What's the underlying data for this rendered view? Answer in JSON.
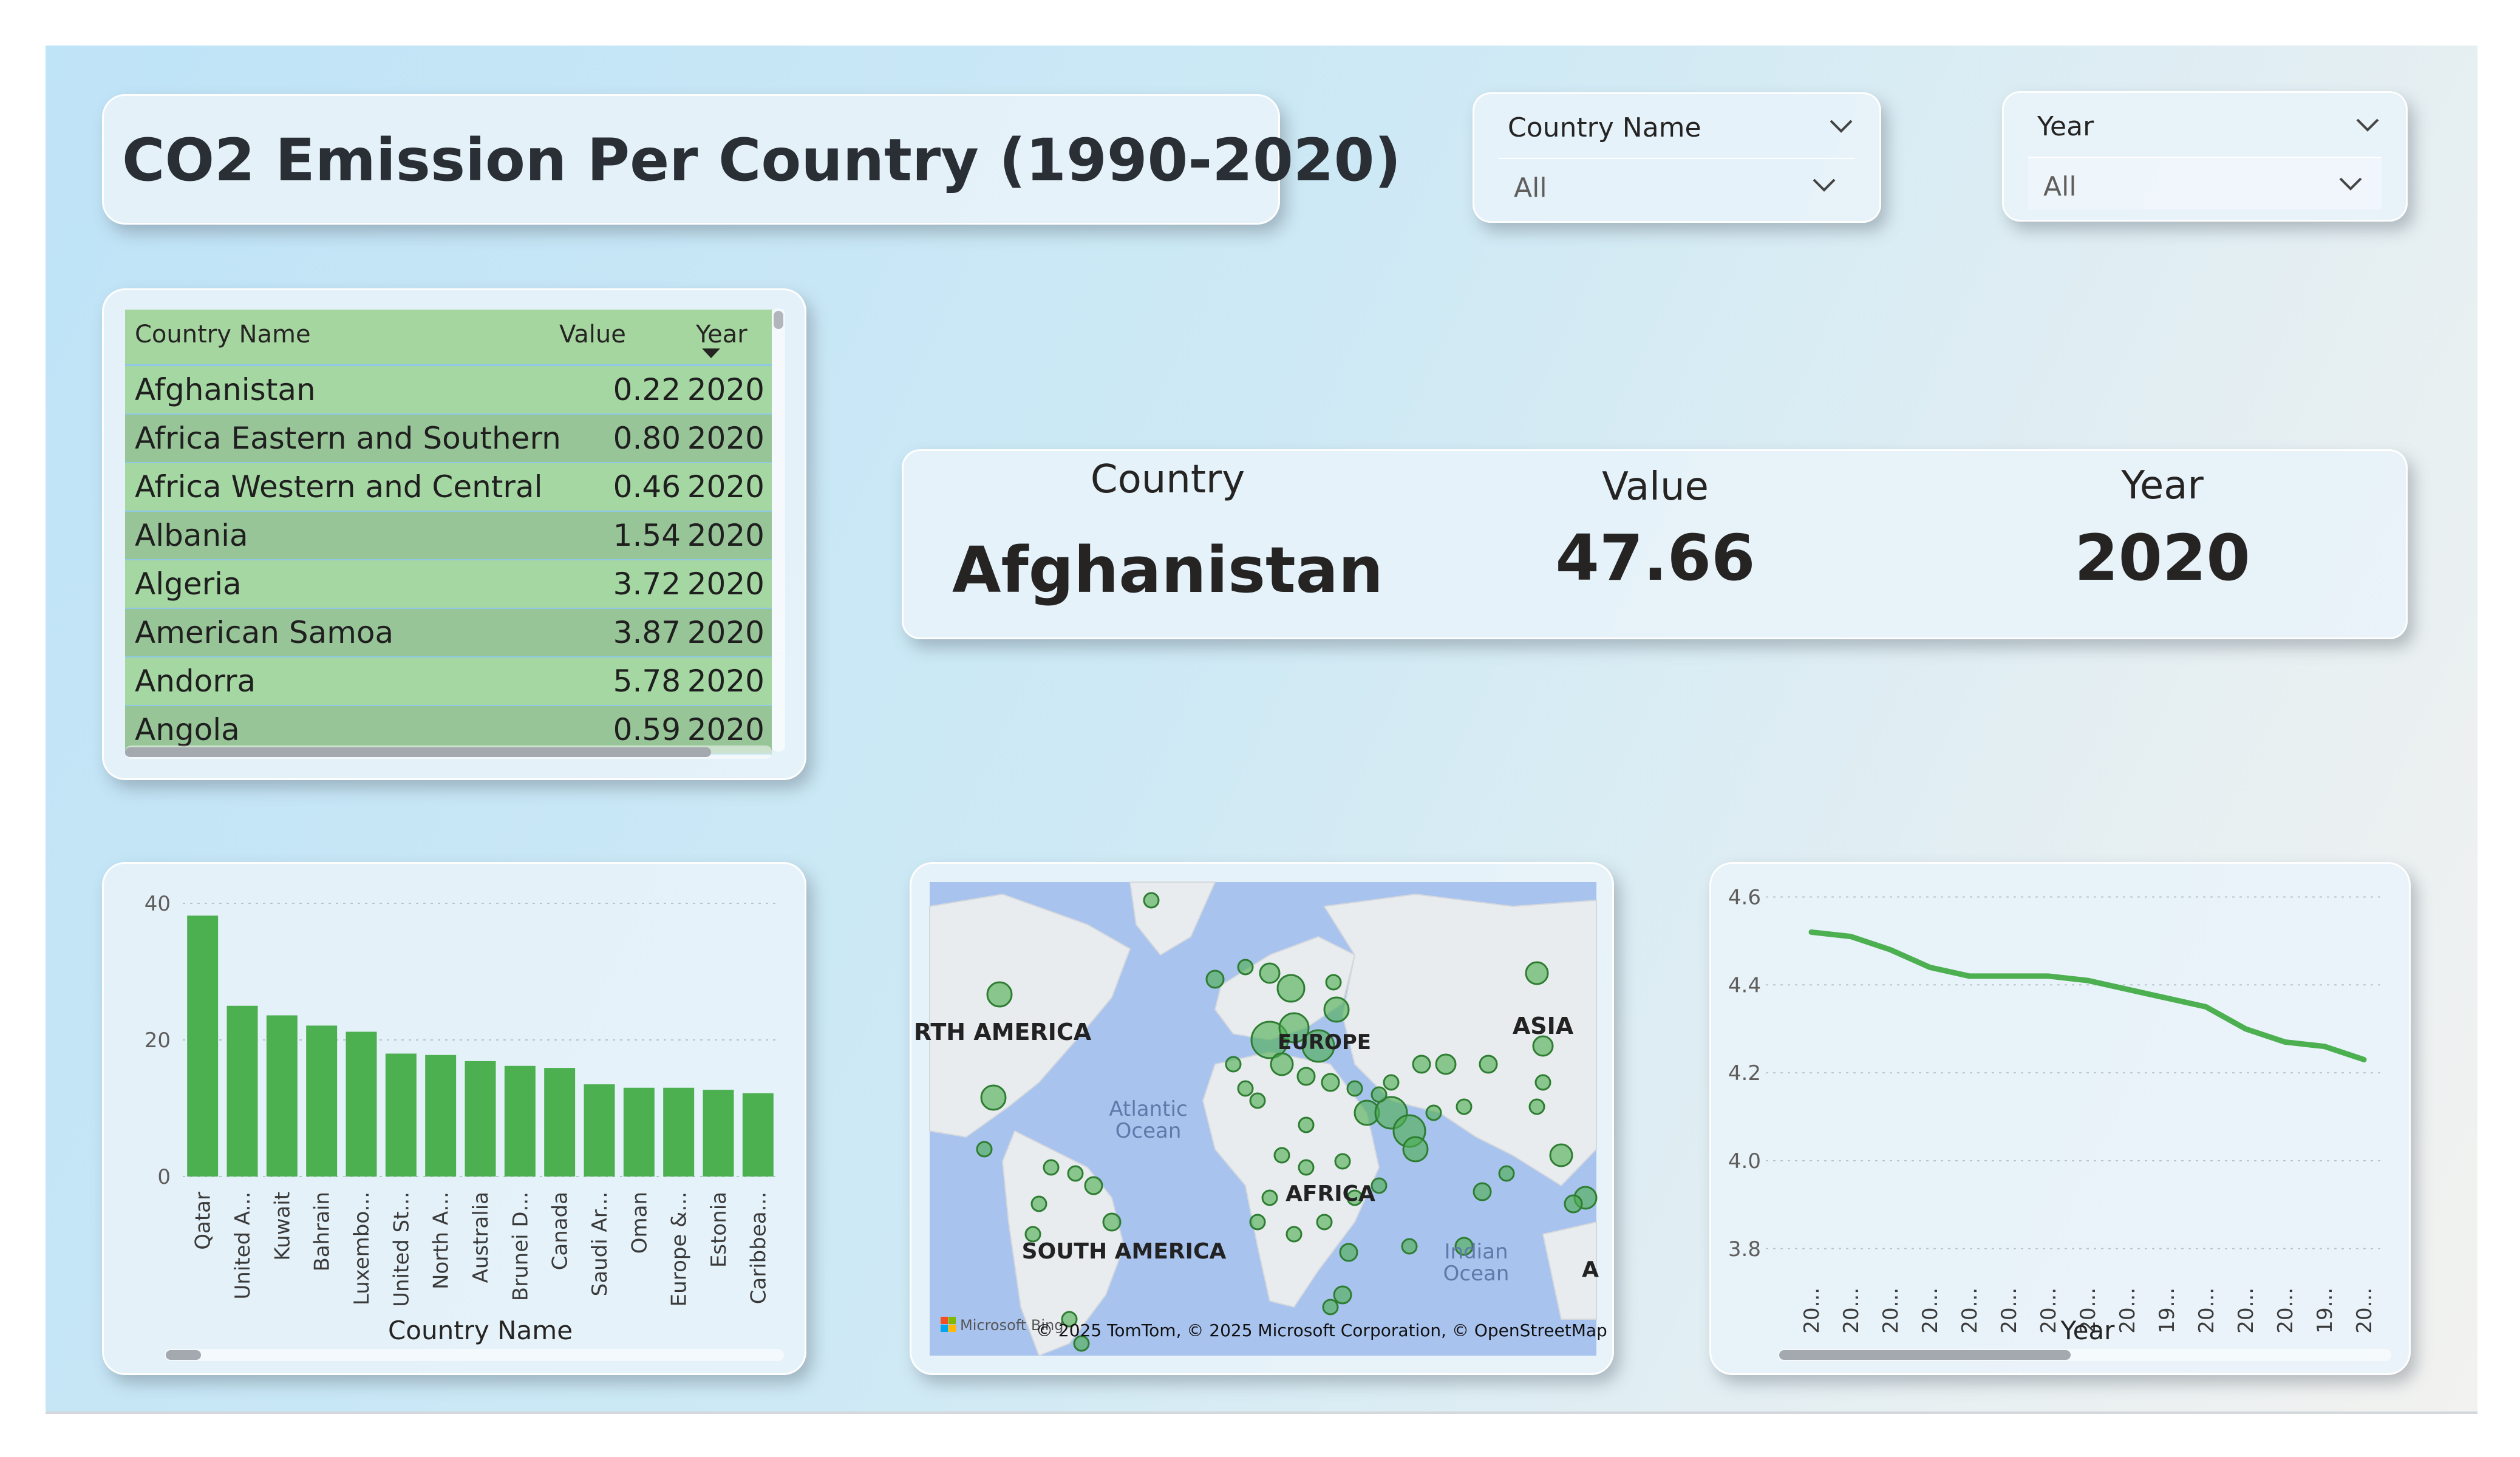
{
  "title": "CO2 Emission Per Country (1990-2020)",
  "slicers": [
    {
      "label": "Country Name",
      "value": "All"
    },
    {
      "label": "Year",
      "value": "All"
    }
  ],
  "table": {
    "columns": [
      "Country Name",
      "Value",
      "Year"
    ],
    "rows": [
      {
        "country": "Afghanistan",
        "value": "0.22",
        "year": "2020"
      },
      {
        "country": "Africa Eastern and Southern",
        "value": "0.80",
        "year": "2020"
      },
      {
        "country": "Africa Western and Central",
        "value": "0.46",
        "year": "2020"
      },
      {
        "country": "Albania",
        "value": "1.54",
        "year": "2020"
      },
      {
        "country": "Algeria",
        "value": "3.72",
        "year": "2020"
      },
      {
        "country": "American Samoa",
        "value": "3.87",
        "year": "2020"
      },
      {
        "country": "Andorra",
        "value": "5.78",
        "year": "2020"
      },
      {
        "country": "Angola",
        "value": "0.59",
        "year": "2020"
      }
    ]
  },
  "kpi": {
    "country_label": "Country",
    "country_value": "Afghanistan",
    "value_label": "Value",
    "value_value": "47.66",
    "year_label": "Year",
    "year_value": "2020"
  },
  "map": {
    "labels": [
      "RTH AMERICA",
      "Atlantic Ocean",
      "EUROPE",
      "ASIA",
      "AFRICA",
      "SOUTH AMERICA",
      "Indian Ocean",
      "A"
    ],
    "attribution": "© 2025 TomTom, © 2025 Microsoft Corporation, © OpenStreetMap",
    "logo_text": "Microsoft Bing"
  },
  "chart_data": [
    {
      "type": "bar",
      "categories": [
        "Qatar",
        "United A...",
        "Kuwait",
        "Bahrain",
        "Luxembo...",
        "United St...",
        "North A...",
        "Australia",
        "Brunei D...",
        "Canada",
        "Saudi Ar...",
        "Oman",
        "Europe &...",
        "Estonia",
        "Caribbea..."
      ],
      "values": [
        38.2,
        25.0,
        23.6,
        22.1,
        21.2,
        18.0,
        17.8,
        16.9,
        16.2,
        15.9,
        13.5,
        13.0,
        13.0,
        12.7,
        12.2
      ],
      "xlabel": "Country Name",
      "ylabel": "",
      "yticks": [
        0,
        20,
        40
      ],
      "ylim": [
        0,
        40
      ],
      "color": "#4caf50"
    },
    {
      "type": "line",
      "x": [
        "20...",
        "20...",
        "20...",
        "20...",
        "20...",
        "20...",
        "20...",
        "20...",
        "20...",
        "19...",
        "20...",
        "20...",
        "20...",
        "19...",
        "20..."
      ],
      "values": [
        4.52,
        4.51,
        4.48,
        4.44,
        4.42,
        4.42,
        4.42,
        4.41,
        4.39,
        4.37,
        4.35,
        4.3,
        4.27,
        4.26,
        4.23
      ],
      "xlabel": "Year",
      "ylabel": "",
      "yticks": [
        3.8,
        4.0,
        4.2,
        4.4,
        4.6
      ],
      "ylim": [
        3.75,
        4.62
      ],
      "color": "#4caf50"
    }
  ]
}
